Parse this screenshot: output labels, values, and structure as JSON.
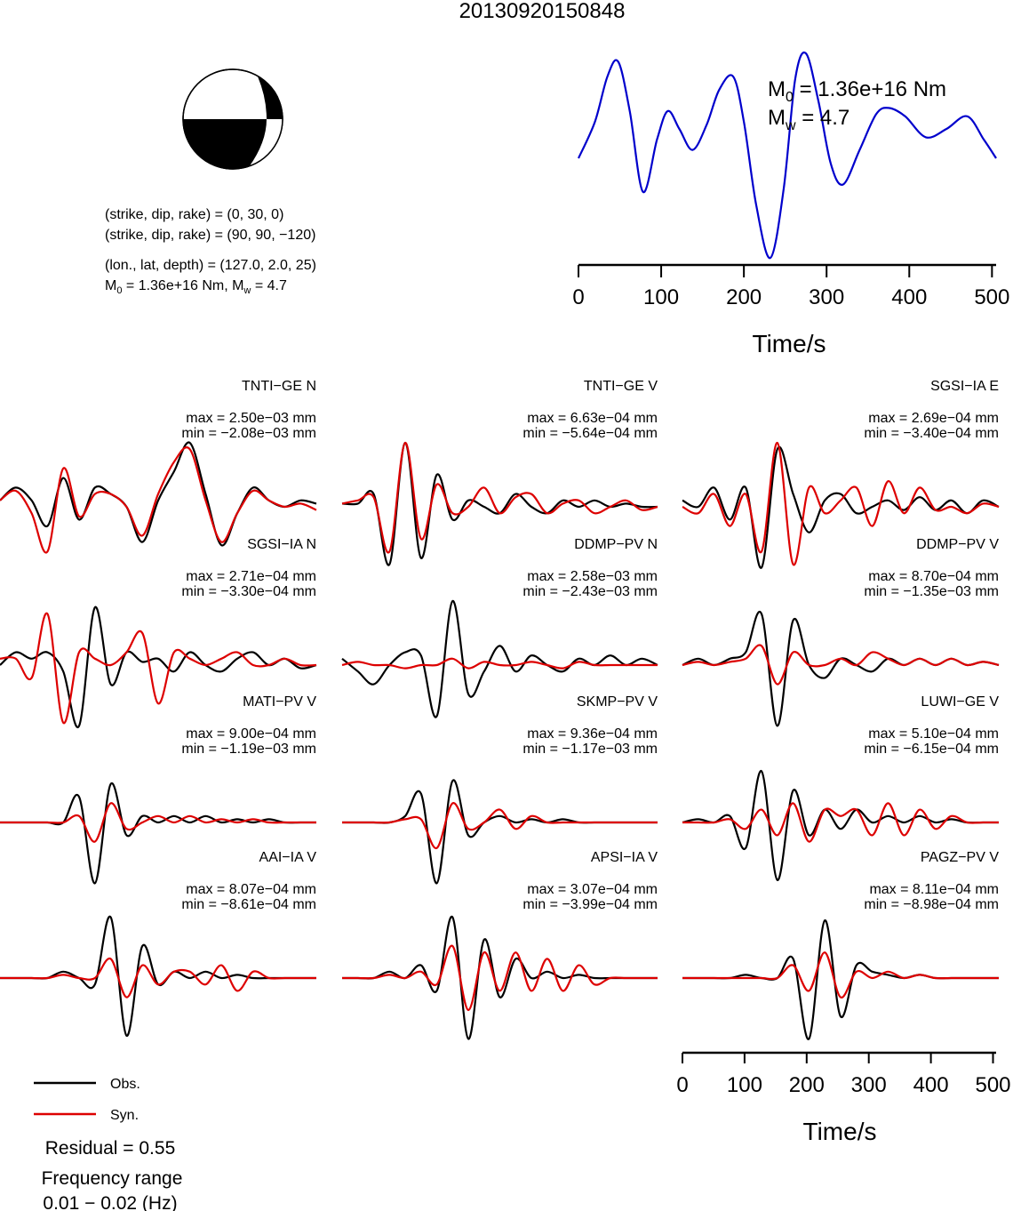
{
  "title": "20130920150848",
  "mechanism": {
    "plane1": "(strike, dip, rake) = (0, 30, 0)",
    "plane2": "(strike, dip, rake) = (90, 90, −120)",
    "location": "(lon., lat, depth) = (127.0, 2.0, 25)",
    "moment_prefix": "M",
    "moment_sub": "0",
    "moment_mid": " = 1.36e+16 Nm, M",
    "moment_sub2": "w",
    "moment_suffix": " = 4.7"
  },
  "stf": {
    "m0_prefix": "M",
    "m0_sub": "0",
    "m0_text": " = 1.36e+16 Nm",
    "mw_prefix": "M",
    "mw_sub": "w",
    "mw_text": " = 4.7",
    "xlabel": "Time/s",
    "color": "#0000cc"
  },
  "bottom_axis": {
    "xlabel": "Time/s"
  },
  "legend": {
    "obs_label": "Obs.",
    "syn_label": "Syn.",
    "obs_color": "#000000",
    "syn_color": "#dd0000"
  },
  "residual": "Residual = 0.55",
  "freq_label": "Frequency range",
  "freq_value": "0.01 − 0.02 (Hz)",
  "chart_data": [
    {
      "type": "line",
      "name": "source time function",
      "x": [
        0,
        20,
        35,
        48,
        62,
        78,
        95,
        108,
        122,
        138,
        155,
        170,
        187,
        200,
        215,
        232,
        248,
        262,
        275,
        290,
        305,
        320,
        340,
        360,
        375,
        395,
        420,
        445,
        470,
        490,
        505
      ],
      "y": [
        0.0,
        0.35,
        0.78,
        0.92,
        0.45,
        -0.32,
        0.18,
        0.45,
        0.28,
        0.08,
        0.32,
        0.65,
        0.78,
        0.35,
        -0.45,
        -0.95,
        -0.3,
        0.75,
        1.0,
        0.55,
        -0.05,
        -0.25,
        0.08,
        0.42,
        0.48,
        0.4,
        0.2,
        0.28,
        0.4,
        0.18,
        0.0
      ],
      "xlim": [
        0,
        505
      ],
      "xticks": [
        0,
        100,
        200,
        300,
        400,
        500
      ],
      "xlabel": "Time/s"
    },
    {
      "type": "line",
      "stations": [
        {
          "label": "TNTI−GE N",
          "max": "max = 2.50e−03 mm",
          "min": "min = −2.08e−03 mm",
          "obs": [
            0.1,
            0.3,
            0.1,
            -0.3,
            0.45,
            -0.2,
            0.3,
            0.2,
            0.0,
            -0.55,
            0.1,
            0.55,
            1.0,
            0.2,
            -0.6,
            -0.1,
            0.3,
            0.1,
            0.0,
            0.1,
            0.05
          ],
          "syn": [
            0.1,
            0.25,
            -0.1,
            -0.7,
            0.6,
            -0.15,
            0.2,
            0.2,
            0.0,
            -0.45,
            0.2,
            0.7,
            0.9,
            0.1,
            -0.55,
            -0.1,
            0.25,
            0.1,
            0.0,
            0.05,
            -0.05
          ]
        },
        {
          "label": "TNTI−GE V",
          "max": "max = 6.63e−04 mm",
          "min": "min = −5.64e−04 mm",
          "obs": [
            0.05,
            0.05,
            0.2,
            -0.9,
            1.0,
            -0.8,
            0.5,
            -0.2,
            0.1,
            0.0,
            -0.1,
            0.2,
            0.0,
            -0.1,
            0.1,
            0.0,
            0.1,
            0.0,
            0.05,
            0.0,
            0.0
          ],
          "syn": [
            0.05,
            0.1,
            0.15,
            -0.7,
            1.0,
            -0.5,
            0.35,
            -0.1,
            0.0,
            0.3,
            -0.1,
            0.15,
            0.2,
            -0.1,
            0.05,
            0.1,
            -0.1,
            0.0,
            0.1,
            -0.05,
            0.0
          ]
        },
        {
          "label": "SGSI−IA E",
          "max": "max = 2.69e−04 mm",
          "min": "min = −3.40e−04 mm",
          "obs": [
            0.1,
            0.0,
            0.3,
            -0.2,
            0.3,
            -0.95,
            0.9,
            0.2,
            -0.4,
            0.1,
            0.2,
            -0.1,
            0.0,
            0.1,
            -0.05,
            0.15,
            -0.05,
            0.1,
            -0.1,
            0.1,
            0.0
          ],
          "syn": [
            0.0,
            -0.1,
            0.2,
            -0.3,
            0.2,
            -0.7,
            1.0,
            -0.9,
            0.3,
            -0.1,
            0.1,
            0.3,
            -0.3,
            0.4,
            -0.1,
            0.3,
            -0.05,
            0.0,
            -0.1,
            0.05,
            0.0
          ]
        },
        {
          "label": "SGSI−IA N",
          "max": "max = 2.71e−04 mm",
          "min": "min = −3.30e−04 mm",
          "obs": [
            0.0,
            0.2,
            0.1,
            0.2,
            -0.1,
            -0.95,
            0.9,
            -0.3,
            0.2,
            0.05,
            0.1,
            -0.1,
            0.2,
            0.0,
            -0.1,
            0.1,
            0.2,
            0.0,
            0.1,
            -0.05,
            0.0
          ],
          "syn": [
            0.1,
            0.1,
            -0.2,
            0.8,
            -0.9,
            0.2,
            0.1,
            0.0,
            0.2,
            0.5,
            -0.6,
            0.2,
            0.1,
            0.0,
            0.1,
            0.2,
            0.0,
            0.0,
            0.1,
            0.0,
            0.0
          ]
        },
        {
          "label": "DDMP−PV N",
          "max": "max = 2.58e−03 mm",
          "min": "min = −2.43e−03 mm",
          "obs": [
            0.1,
            -0.1,
            -0.3,
            0.0,
            0.2,
            0.15,
            -0.8,
            1.0,
            -0.45,
            -0.1,
            0.3,
            -0.1,
            0.15,
            0.0,
            -0.1,
            0.1,
            0.0,
            0.15,
            0.0,
            0.1,
            0.0
          ],
          "syn": [
            0.0,
            0.05,
            0.0,
            0.0,
            -0.05,
            0.0,
            0.0,
            0.1,
            -0.05,
            0.05,
            0.0,
            0.0,
            0.05,
            0.0,
            -0.05,
            0.05,
            0.0,
            0.0,
            0.0,
            0.0,
            0.0
          ]
        },
        {
          "label": "DDMP−PV V",
          "max": "max = 8.70e−04 mm",
          "min": "min = −1.35e−03 mm",
          "obs": [
            0.0,
            0.1,
            0.0,
            0.1,
            0.2,
            0.8,
            -0.95,
            0.7,
            0.0,
            -0.2,
            0.1,
            0.0,
            -0.1,
            0.1,
            0.0,
            0.1,
            0.0,
            0.1,
            0.0,
            0.05,
            0.0
          ],
          "syn": [
            0.0,
            0.05,
            0.0,
            0.05,
            0.1,
            0.3,
            -0.3,
            0.2,
            0.0,
            0.0,
            0.1,
            0.0,
            0.2,
            0.1,
            0.0,
            0.1,
            0.0,
            0.1,
            0.0,
            0.05,
            0.0
          ]
        },
        {
          "label": "MATI−PV V",
          "max": "max = 9.00e−04 mm",
          "min": "min = −1.19e−03 mm",
          "obs": [
            0.0,
            0.0,
            0.0,
            0.0,
            0.0,
            0.4,
            -0.95,
            0.6,
            -0.2,
            0.1,
            0.0,
            0.1,
            0.0,
            0.1,
            0.0,
            0.05,
            0.0,
            0.05,
            0.0,
            0.0,
            0.0
          ],
          "syn": [
            0.0,
            0.0,
            0.0,
            0.0,
            0.0,
            0.1,
            -0.3,
            0.3,
            -0.1,
            0.0,
            0.1,
            0.0,
            0.1,
            0.0,
            0.05,
            0.0,
            0.05,
            0.0,
            0.0,
            0.0,
            0.0
          ]
        },
        {
          "label": "SKMP−PV V",
          "max": "max = 9.36e−04 mm",
          "min": "min = −1.17e−03 mm",
          "obs": [
            0.0,
            0.0,
            0.0,
            0.0,
            0.1,
            0.45,
            -0.95,
            0.65,
            -0.2,
            0.0,
            0.1,
            0.0,
            0.05,
            0.0,
            0.05,
            0.0,
            0.0,
            0.0,
            0.0,
            0.0,
            0.0
          ],
          "syn": [
            0.0,
            0.0,
            0.0,
            0.0,
            0.05,
            0.05,
            -0.4,
            0.3,
            -0.1,
            0.0,
            0.2,
            -0.1,
            0.1,
            0.0,
            0.0,
            0.0,
            0.0,
            0.0,
            0.0,
            0.0,
            0.0
          ]
        },
        {
          "label": "LUWI−GE V",
          "max": "max = 5.10e−04 mm",
          "min": "min = −6.15e−04 mm",
          "obs": [
            0.0,
            0.05,
            0.0,
            0.1,
            -0.4,
            0.8,
            -0.9,
            0.5,
            -0.2,
            0.2,
            -0.1,
            0.2,
            0.0,
            0.1,
            0.0,
            0.1,
            0.0,
            0.05,
            0.0,
            0.0,
            0.0
          ],
          "syn": [
            0.0,
            0.0,
            0.0,
            0.05,
            -0.1,
            0.2,
            -0.2,
            0.3,
            -0.3,
            0.2,
            0.1,
            0.2,
            -0.2,
            0.3,
            -0.2,
            0.2,
            -0.1,
            0.1,
            0.0,
            0.0,
            0.0
          ]
        },
        {
          "label": "AAI−IA V",
          "max": "max = 8.07e−04 mm",
          "min": "min = −8.61e−04 mm",
          "obs": [
            0.0,
            0.0,
            0.0,
            0.0,
            0.1,
            0.0,
            -0.1,
            0.95,
            -0.9,
            0.5,
            -0.1,
            0.1,
            0.0,
            0.1,
            0.0,
            0.05,
            0.0,
            0.0,
            0.0,
            0.0,
            0.0
          ],
          "syn": [
            0.0,
            0.0,
            0.0,
            0.0,
            0.05,
            0.0,
            0.0,
            0.3,
            -0.3,
            0.2,
            -0.1,
            0.1,
            0.1,
            -0.1,
            0.2,
            -0.2,
            0.1,
            0.0,
            0.0,
            0.0,
            0.0
          ]
        },
        {
          "label": "APSI−IA V",
          "max": "max = 3.07e−04 mm",
          "min": "min = −3.99e−04 mm",
          "obs": [
            0.0,
            0.0,
            0.0,
            0.1,
            0.0,
            0.2,
            -0.2,
            0.95,
            -0.95,
            0.6,
            -0.3,
            0.3,
            0.0,
            0.1,
            0.0,
            0.05,
            0.0,
            0.0,
            0.0,
            0.0,
            0.0
          ],
          "syn": [
            0.0,
            0.0,
            0.0,
            0.05,
            0.0,
            0.1,
            -0.1,
            0.5,
            -0.5,
            0.4,
            -0.2,
            0.4,
            -0.2,
            0.3,
            -0.2,
            0.2,
            -0.1,
            0.0,
            0.0,
            0.0,
            0.0
          ]
        },
        {
          "label": "PAGZ−PV V",
          "max": "max = 8.11e−04 mm",
          "min": "min = −8.98e−04 mm",
          "obs": [
            0.0,
            0.0,
            0.0,
            0.0,
            0.05,
            0.0,
            0.0,
            0.3,
            -0.95,
            0.9,
            -0.6,
            0.2,
            0.1,
            0.05,
            0.0,
            0.05,
            0.0,
            0.0,
            0.0,
            0.0,
            0.0
          ],
          "syn": [
            0.0,
            0.0,
            0.0,
            0.0,
            0.0,
            0.0,
            0.0,
            0.2,
            -0.2,
            0.4,
            -0.3,
            0.1,
            0.0,
            0.1,
            0.0,
            0.05,
            0.0,
            0.0,
            0.0,
            0.0,
            0.0
          ]
        }
      ],
      "xlim": [
        0,
        505
      ],
      "xticks": [
        0,
        100,
        200,
        300,
        400,
        500
      ],
      "xlabel": "Time/s"
    }
  ]
}
